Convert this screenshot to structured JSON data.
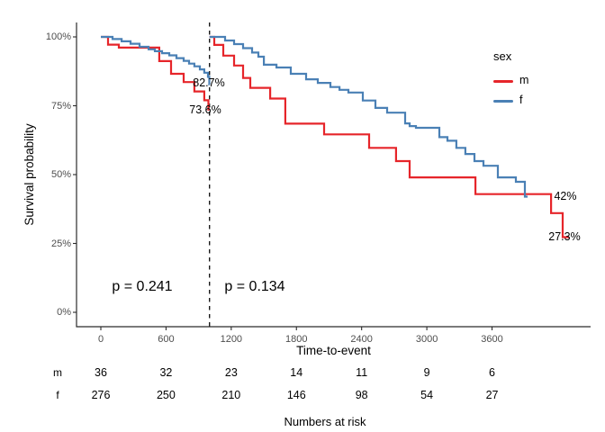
{
  "chart_data": {
    "type": "line",
    "subtype": "kaplan-meier-step",
    "title": "",
    "xlabel": "Time-to-event",
    "ylabel": "Survival probability",
    "x_ticks": [
      0,
      600,
      1200,
      1800,
      2400,
      3000,
      3600
    ],
    "y_ticks": [
      "0%",
      "25%",
      "50%",
      "75%",
      "100%"
    ],
    "y_tick_values": [
      0,
      25,
      50,
      75,
      100
    ],
    "xlim": [
      -240,
      4490
    ],
    "ylim": [
      0,
      100
    ],
    "grid": false,
    "landmark_time": 1000,
    "legend": {
      "title": "sex",
      "position": "inside-top-right",
      "entries": [
        {
          "label": "m",
          "color": "#e6252a"
        },
        {
          "label": "f",
          "color": "#4a80b5"
        }
      ]
    },
    "p_values": [
      {
        "text": "p = 0.241",
        "region": "before-landmark"
      },
      {
        "text": "p = 0.134",
        "region": "after-landmark"
      }
    ],
    "annotations": [
      {
        "text": "82.7%",
        "series": "f",
        "time": 1000,
        "pct": 82.7
      },
      {
        "text": "73.6%",
        "series": "m",
        "time": 1000,
        "pct": 73.6
      },
      {
        "text": "42%",
        "series": "f",
        "time": 3900,
        "pct": 42
      },
      {
        "text": "27.3%",
        "series": "m",
        "time": 4300,
        "pct": 27.3
      }
    ],
    "series": [
      {
        "name": "m",
        "color": "#e6252a",
        "segments": [
          {
            "points": [
              [
                0,
                100
              ],
              [
                66,
                97.2
              ],
              [
                166,
                96.1
              ],
              [
                538,
                91.2
              ],
              [
                646,
                86.6
              ],
              [
                762,
                83.6
              ],
              [
                861,
                80.2
              ],
              [
                952,
                77.0
              ],
              [
                990,
                73.6
              ]
            ],
            "end": 1000
          },
          {
            "points": [
              [
                1000,
                100
              ],
              [
                1044,
                97.1
              ],
              [
                1127,
                93.2
              ],
              [
                1226,
                89.6
              ],
              [
                1309,
                85.1
              ],
              [
                1375,
                81.5
              ],
              [
                1558,
                77.6
              ],
              [
                1698,
                68.5
              ],
              [
                2055,
                64.6
              ],
              [
                2469,
                59.7
              ],
              [
                2717,
                54.9
              ],
              [
                2842,
                49.0
              ],
              [
                3447,
                42.9
              ],
              [
                4143,
                36.0
              ],
              [
                4250,
                27.3
              ]
            ],
            "end": 4308
          }
        ]
      },
      {
        "name": "f",
        "color": "#4a80b5",
        "segments": [
          {
            "points": [
              [
                0,
                100
              ],
              [
                108,
                99.2
              ],
              [
                191,
                98.4
              ],
              [
                273,
                97.5
              ],
              [
                356,
                96.4
              ],
              [
                439,
                95.5
              ],
              [
                497,
                94.8
              ],
              [
                563,
                94.1
              ],
              [
                630,
                93.3
              ],
              [
                696,
                92.3
              ],
              [
                762,
                91.3
              ],
              [
                812,
                90.3
              ],
              [
                861,
                89.3
              ],
              [
                911,
                88.2
              ],
              [
                952,
                87.0
              ],
              [
                986,
                85.5
              ],
              [
                998,
                82.7
              ]
            ],
            "end": 1000
          },
          {
            "points": [
              [
                1000,
                100
              ],
              [
                1143,
                98.7
              ],
              [
                1226,
                97.4
              ],
              [
                1309,
                95.9
              ],
              [
                1392,
                94.3
              ],
              [
                1450,
                92.8
              ],
              [
                1500,
                89.9
              ],
              [
                1616,
                88.9
              ],
              [
                1748,
                86.6
              ],
              [
                1889,
                84.6
              ],
              [
                1997,
                83.3
              ],
              [
                2113,
                81.8
              ],
              [
                2196,
                80.8
              ],
              [
                2278,
                79.8
              ],
              [
                2411,
                76.9
              ],
              [
                2527,
                74.2
              ],
              [
                2635,
                72.5
              ],
              [
                2800,
                68.6
              ],
              [
                2842,
                67.6
              ],
              [
                2900,
                67.0
              ],
              [
                3115,
                63.6
              ],
              [
                3190,
                62.3
              ],
              [
                3272,
                59.7
              ],
              [
                3355,
                57.5
              ],
              [
                3438,
                54.9
              ],
              [
                3521,
                53.2
              ],
              [
                3654,
                49.0
              ],
              [
                3819,
                47.4
              ],
              [
                3902,
                42.0
              ]
            ],
            "end": 3927
          }
        ]
      }
    ],
    "risk_table": {
      "caption": "Numbers at risk",
      "times": [
        0,
        600,
        1200,
        1800,
        2400,
        3000,
        3600
      ],
      "rows": [
        {
          "label": "m",
          "counts": [
            36,
            32,
            23,
            14,
            11,
            9,
            6
          ]
        },
        {
          "label": "f",
          "counts": [
            276,
            250,
            210,
            146,
            98,
            54,
            27
          ]
        }
      ]
    }
  }
}
